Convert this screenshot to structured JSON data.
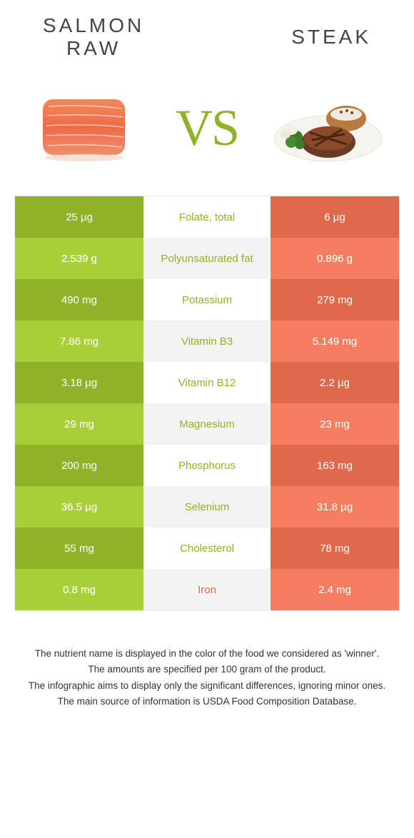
{
  "colors": {
    "left": "#8fb229",
    "right": "#e1694b",
    "left_alt": "#9cbf34",
    "right_alt": "#e47458",
    "vs": "#8fb229"
  },
  "header": {
    "left_title_line1": "SALMON",
    "left_title_line2": "RAW",
    "right_title": "STEAK",
    "vs_text": "VS"
  },
  "rows": [
    {
      "left": "25 µg",
      "label": "Folate, total",
      "right": "6 µg",
      "winner": "left"
    },
    {
      "left": "2.539 g",
      "label": "Polyunsaturated fat",
      "right": "0.896 g",
      "winner": "left"
    },
    {
      "left": "490 mg",
      "label": "Potassium",
      "right": "279 mg",
      "winner": "left"
    },
    {
      "left": "7.86 mg",
      "label": "Vitamin B3",
      "right": "5.149 mg",
      "winner": "left"
    },
    {
      "left": "3.18 µg",
      "label": "Vitamin B12",
      "right": "2.2 µg",
      "winner": "left"
    },
    {
      "left": "29 mg",
      "label": "Magnesium",
      "right": "23 mg",
      "winner": "left"
    },
    {
      "left": "200 mg",
      "label": "Phosphorus",
      "right": "163 mg",
      "winner": "left"
    },
    {
      "left": "36.5 µg",
      "label": "Selenium",
      "right": "31.8 µg",
      "winner": "left"
    },
    {
      "left": "55 mg",
      "label": "Cholesterol",
      "right": "78 mg",
      "winner": "left"
    },
    {
      "left": "0.8 mg",
      "label": "Iron",
      "right": "2.4 mg",
      "winner": "right"
    }
  ],
  "footnotes": [
    "The nutrient name is displayed in the color of the food we considered as 'winner'.",
    "The amounts are specified per 100 gram of the product.",
    "The infographic aims to display only the significant differences, ignoring minor ones.",
    "The main source of information is USDA Food Composition Database."
  ]
}
